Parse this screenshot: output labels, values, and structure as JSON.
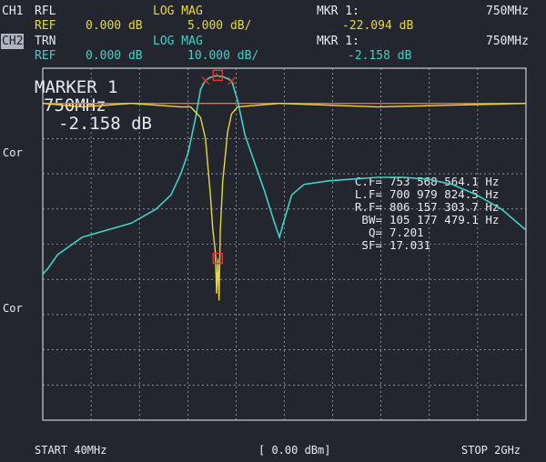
{
  "ch1": {
    "tag": "CH1",
    "mode": "RFL",
    "format": "LOG MAG",
    "ref_label": "REF",
    "ref_value": "0.000 dB",
    "scale": "5.000 dB/",
    "marker_label": "MKR 1:",
    "marker_value": "-22.094 dB",
    "marker_freq": "750MHz"
  },
  "ch2": {
    "tag": "CH2",
    "mode": "TRN",
    "format": "LOG MAG",
    "ref_label": "REF",
    "ref_value": "0.000 dB",
    "scale": "10.000 dB/",
    "marker_label": "MKR 1:",
    "marker_value": "-2.158 dB",
    "marker_freq": "750MHz"
  },
  "marker_box": {
    "title": "MARKER 1",
    "freq": "750MHz",
    "value": "-2.158 dB"
  },
  "stats": [
    {
      "label": "C.F=",
      "value": "753 568 564.1 Hz"
    },
    {
      "label": "L.F=",
      "value": "700 979 824.5 Hz"
    },
    {
      "label": "R.F=",
      "value": "806 157 303.7 Hz"
    },
    {
      "label": "BW=",
      "value": "105 177 479.1 Hz"
    },
    {
      "label": "Q=",
      "value": "7.201"
    },
    {
      "label": "SF=",
      "value": "17.031"
    }
  ],
  "cor_labels": [
    "Cor",
    "Cor"
  ],
  "footer": {
    "start": "START 40MHz",
    "power": "[ 0.00 dBm]",
    "stop": "STOP 2GHz"
  },
  "colors": {
    "ch1_trace": "#e8d93a",
    "ch2_trace": "#3fd2c8",
    "ref_line": "#e8742e",
    "marker": "#e23b2e",
    "grid": "#c9ccd4"
  },
  "chart_data": {
    "type": "line",
    "x_range_mhz": [
      40,
      2000
    ],
    "series": [
      {
        "trace": "CH2 TRN",
        "x_mhz": [
          40,
          60,
          100,
          200,
          300,
          400,
          500,
          560,
          600,
          630,
          660,
          680,
          700,
          720,
          740,
          750,
          770,
          790,
          806,
          830,
          860,
          900,
          940,
          980,
          1000,
          1020,
          1050,
          1100,
          1200,
          1300,
          1400,
          1500,
          1600,
          1700,
          1800,
          1900,
          2000
        ],
        "y_db": [
          -58.5,
          -57,
          -53,
          -48,
          -46,
          -44,
          -40,
          -36,
          -30,
          -24,
          -14,
          -6,
          -3.5,
          -2.6,
          -2.2,
          -2.158,
          -2.4,
          -3,
          -3.6,
          -9,
          -19,
          -27,
          -35,
          -44,
          -48,
          -43,
          -36,
          -33,
          -32,
          -31.5,
          -31,
          -31,
          -31.5,
          -33,
          -36,
          -40,
          -46
        ]
      },
      {
        "trace": "CH1 RFL",
        "x_mhz": [
          40,
          200,
          400,
          600,
          640,
          680,
          700,
          720,
          730,
          740,
          745,
          750,
          755,
          760,
          770,
          790,
          806,
          830,
          1000,
          1400,
          2000
        ],
        "y_db": [
          0,
          -0.5,
          0,
          -0.5,
          -0.5,
          -2,
          -5,
          -13,
          -18,
          -21,
          -27,
          -22.094,
          -28,
          -18,
          -11,
          -4,
          -1.5,
          -0.5,
          0,
          -0.5,
          0
        ]
      }
    ]
  }
}
